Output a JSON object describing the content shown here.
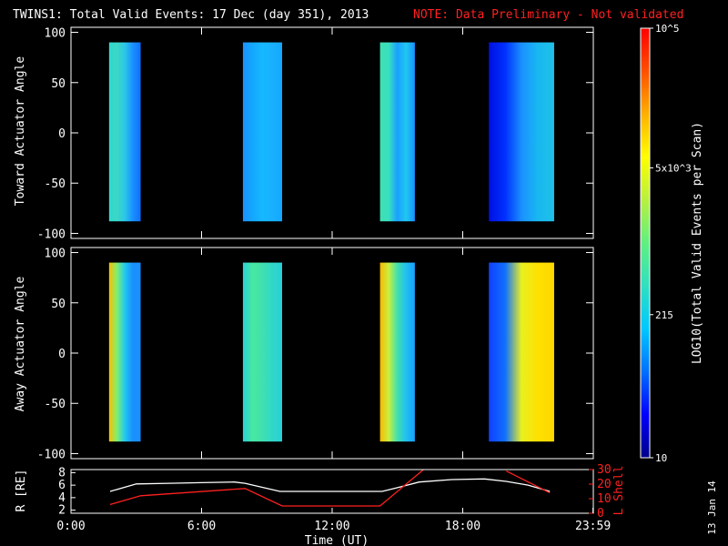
{
  "title": "TWINS1: Total Valid Events: 17 Dec (day 351), 2013",
  "note": "NOTE: Data Preliminary - Not validated",
  "stamp": "13 Jan 14",
  "colorbar": {
    "label": "LOG10(Total Valid Events per Scan)",
    "scale": "log",
    "range": [
      10,
      100000
    ],
    "ticks": [
      {
        "value": 10,
        "label": "10"
      },
      {
        "value": 215,
        "label": "215"
      },
      {
        "value": 5000,
        "label": "5x10^3"
      },
      {
        "value": 100000,
        "label": "10^5"
      }
    ],
    "stops": [
      "#00008a",
      "#0000ff",
      "#0070ff",
      "#00c8ff",
      "#30e0c0",
      "#60f080",
      "#b8f040",
      "#ffff00",
      "#ffb000",
      "#ff5000",
      "#ff0000"
    ]
  },
  "chart_data": [
    {
      "type": "heatmap",
      "panel": "top",
      "ylabel": "Toward Actuator Angle",
      "ylim": [
        -105,
        105
      ],
      "yticks": [
        -100,
        -50,
        0,
        50,
        100
      ],
      "xlim": [
        0,
        24
      ],
      "data_angle_range": [
        -88,
        90
      ],
      "blocks": [
        {
          "start_hr": 1.75,
          "end_hr": 3.2,
          "colors": [
            "#30d8d0",
            "#3ad8c4",
            "#2ac8e8",
            "#1a90ff",
            "#1070ff"
          ]
        },
        {
          "start_hr": 7.9,
          "end_hr": 9.7,
          "colors": [
            "#1a90ff",
            "#14a8ff",
            "#16b8ff",
            "#18b0ff",
            "#14a8ff"
          ]
        },
        {
          "start_hr": 14.2,
          "end_hr": 15.8,
          "colors": [
            "#40e0b0",
            "#38e0c0",
            "#1aa0ff",
            "#20c8f0",
            "#1890ff"
          ]
        },
        {
          "start_hr": 19.2,
          "end_hr": 22.2,
          "colors": [
            "#0010e0",
            "#0030ff",
            "#1a90ff",
            "#18b8f0",
            "#20c0e8"
          ]
        }
      ]
    },
    {
      "type": "heatmap",
      "panel": "bottom",
      "ylabel": "Away Actuator Angle",
      "ylim": [
        -105,
        105
      ],
      "yticks": [
        -100,
        -50,
        0,
        50,
        100
      ],
      "xlim": [
        0,
        24
      ],
      "data_angle_range": [
        -88,
        90
      ],
      "blocks": [
        {
          "start_hr": 1.75,
          "end_hr": 3.2,
          "colors": [
            "#f8c000",
            "#80f070",
            "#20c8f0",
            "#1a90ff",
            "#1a90ff"
          ]
        },
        {
          "start_hr": 7.9,
          "end_hr": 9.7,
          "colors": [
            "#28d0d8",
            "#48e8a0",
            "#40e0b0",
            "#30d8c8",
            "#28d0d8"
          ]
        },
        {
          "start_hr": 14.2,
          "end_hr": 15.8,
          "colors": [
            "#f8b800",
            "#c8f040",
            "#40e0b0",
            "#20c0f0",
            "#18a0ff"
          ]
        },
        {
          "start_hr": 19.2,
          "end_hr": 22.2,
          "colors": [
            "#1040ff",
            "#1070ff",
            "#e8f020",
            "#ffe000",
            "#ffd800"
          ]
        }
      ]
    },
    {
      "type": "line",
      "panel": "orbit",
      "ylabel": "R [RE]",
      "y2label": "L Shell",
      "xlabel": "Time (UT)",
      "xlim": [
        0,
        24
      ],
      "ylim": [
        1.5,
        8.5
      ],
      "yticks": [
        2,
        4,
        6,
        8
      ],
      "y2lim": [
        0,
        30
      ],
      "y2ticks": [
        0,
        10,
        20,
        30
      ],
      "xticks": [
        {
          "value": 0,
          "label": "0:00"
        },
        {
          "value": 6,
          "label": "6:00"
        },
        {
          "value": 12,
          "label": "12:00"
        },
        {
          "value": 18,
          "label": "18:00"
        },
        {
          "value": 23.983,
          "label": "23:59"
        }
      ],
      "series": [
        {
          "name": "R",
          "color": "#ffffff",
          "axis": "left",
          "x": [
            1.8,
            3.0,
            4.5,
            6.0,
            7.5,
            8.0,
            9.6,
            12.0,
            14.3,
            15.0,
            16.0,
            17.5,
            19.0,
            20.0,
            21.0,
            22.0
          ],
          "y": [
            5.0,
            6.2,
            6.3,
            6.4,
            6.5,
            6.3,
            5.0,
            5.0,
            5.0,
            5.6,
            6.5,
            6.9,
            7.0,
            6.6,
            6.0,
            5.0
          ]
        },
        {
          "name": "L",
          "color": "#ff2020",
          "axis": "right",
          "x": [
            1.8,
            3.2,
            8.0,
            9.7,
            14.2,
            16.2,
            null,
            20.0,
            22.0
          ],
          "y": [
            6,
            12,
            17,
            5,
            5,
            30,
            null,
            29,
            14
          ]
        }
      ]
    }
  ]
}
